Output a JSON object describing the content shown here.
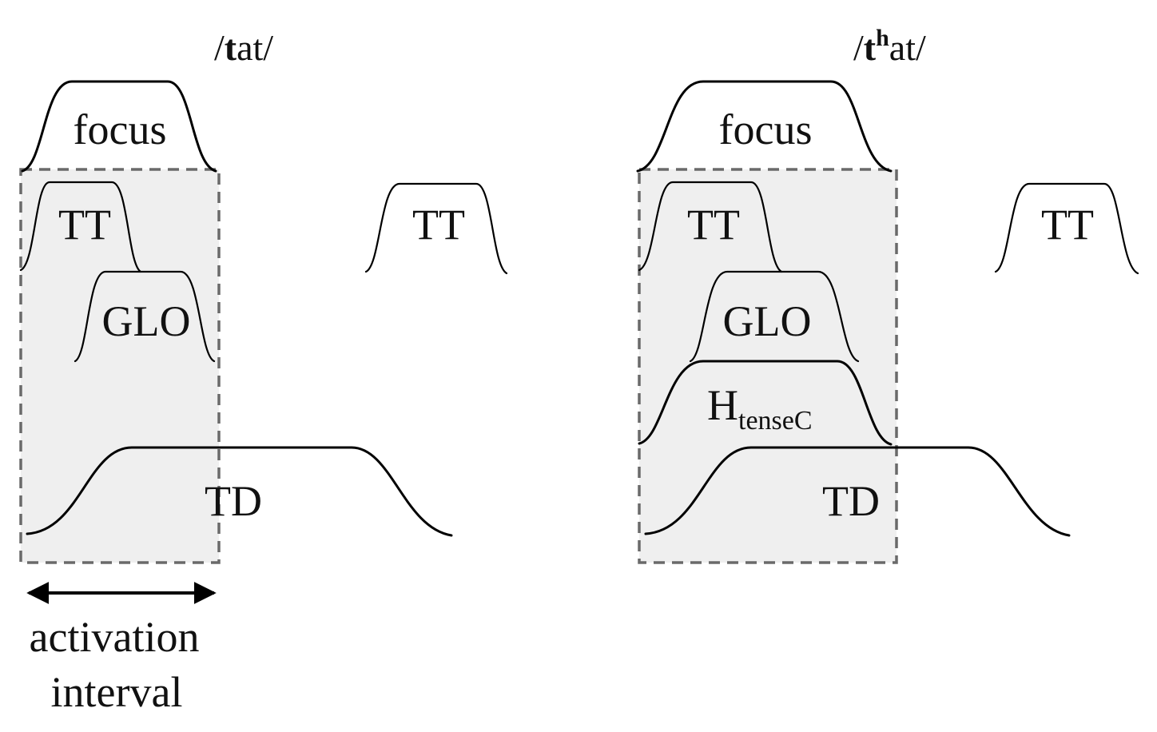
{
  "panels": [
    {
      "id": "tat",
      "title": {
        "pre": "/",
        "bold": "t",
        "sup": "",
        "post": "at/"
      },
      "labels": {
        "focus": "focus",
        "tt1": "TT",
        "glo": "GLO",
        "td": "TD",
        "tt2": "TT"
      }
    },
    {
      "id": "that",
      "title": {
        "pre": "/",
        "bold": "t",
        "sup": "h",
        "post": "at/"
      },
      "labels": {
        "focus": "focus",
        "tt1": "TT",
        "glo": "GLO",
        "htense_main": "H",
        "htense_sub": "tenseC",
        "td": "TD",
        "tt2": "TT"
      }
    }
  ],
  "annotation": {
    "line1": "activation",
    "line2": "interval"
  }
}
